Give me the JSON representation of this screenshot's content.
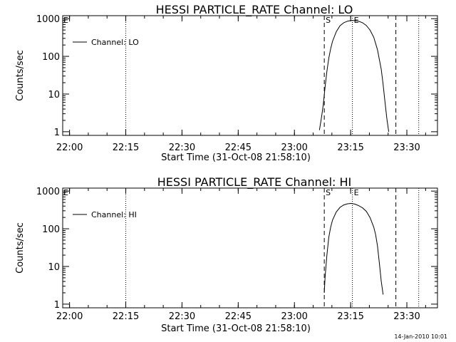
{
  "footer_timestamp": "14-Jan-2010 10:01",
  "chart_data": [
    {
      "type": "line",
      "title": "HESSI PARTICLE_RATE Channel: LO",
      "xlabel": "Start Time (31-Oct-08 21:58:10)",
      "ylabel": "Counts/sec",
      "x_tick_labels": [
        "22:00",
        "22:15",
        "22:30",
        "22:45",
        "23:00",
        "23:15",
        "23:30"
      ],
      "x_tick_minutes": [
        1.83,
        16.83,
        31.83,
        46.83,
        61.83,
        76.83,
        91.83
      ],
      "xlim_minutes": [
        0,
        100
      ],
      "ylim": [
        0.8,
        1200
      ],
      "y_scale": "log",
      "y_tick_labels": [
        "1",
        "10",
        "100",
        "1000"
      ],
      "y_ticks": [
        1,
        10,
        100,
        1000
      ],
      "legend": {
        "label": "Channel: LO",
        "position": "top-left"
      },
      "markers": [
        {
          "label": "S",
          "x_minutes": 69.8,
          "style": "dashed"
        },
        {
          "label": "E",
          "x_minutes": 77.3,
          "style": "dotted"
        }
      ],
      "vlines": [
        {
          "x_minutes": 16.83,
          "style": "dotted"
        },
        {
          "x_minutes": 69.8,
          "style": "dashed"
        },
        {
          "x_minutes": 77.3,
          "style": "dotted"
        },
        {
          "x_minutes": 88.9,
          "style": "dashed"
        },
        {
          "x_minutes": 95.0,
          "style": "dotted"
        }
      ],
      "series": [
        {
          "name": "Channel: LO",
          "x_minutes": [
            68.5,
            69.0,
            69.5,
            70.0,
            70.5,
            71.0,
            71.5,
            72.0,
            73.0,
            74.0,
            75.0,
            76.0,
            77.0,
            78.0,
            79.0,
            80.0,
            81.0,
            82.0,
            83.0,
            84.0,
            85.0,
            85.5,
            86.0,
            86.5,
            87.0
          ],
          "values": [
            1.1,
            2.2,
            5.0,
            15.0,
            40.0,
            90.0,
            160.0,
            250.0,
            450.0,
            650.0,
            780.0,
            860.0,
            900.0,
            890.0,
            850.0,
            780.0,
            660.0,
            500.0,
            320.0,
            150.0,
            45.0,
            18.0,
            6.0,
            2.2,
            1.0
          ]
        }
      ]
    },
    {
      "type": "line",
      "title": "HESSI PARTICLE_RATE Channel: HI",
      "xlabel": "Start Time (31-Oct-08 21:58:10)",
      "ylabel": "Counts/sec",
      "x_tick_labels": [
        "22:00",
        "22:15",
        "22:30",
        "22:45",
        "23:00",
        "23:15",
        "23:30"
      ],
      "x_tick_minutes": [
        1.83,
        16.83,
        31.83,
        46.83,
        61.83,
        76.83,
        91.83
      ],
      "xlim_minutes": [
        0,
        100
      ],
      "ylim": [
        0.8,
        1200
      ],
      "y_scale": "log",
      "y_tick_labels": [
        "1",
        "10",
        "100",
        "1000"
      ],
      "y_ticks": [
        1,
        10,
        100,
        1000
      ],
      "legend": {
        "label": "Channel: HI",
        "position": "top-left"
      },
      "markers": [
        {
          "label": "S",
          "x_minutes": 69.8,
          "style": "dashed"
        },
        {
          "label": "E",
          "x_minutes": 77.3,
          "style": "dotted"
        }
      ],
      "vlines": [
        {
          "x_minutes": 16.83,
          "style": "dotted"
        },
        {
          "x_minutes": 69.8,
          "style": "dashed"
        },
        {
          "x_minutes": 77.3,
          "style": "dotted"
        },
        {
          "x_minutes": 88.9,
          "style": "dashed"
        },
        {
          "x_minutes": 95.0,
          "style": "dotted"
        }
      ],
      "series": [
        {
          "name": "Channel: HI",
          "x_minutes": [
            69.8,
            70.0,
            70.5,
            71.0,
            71.5,
            72.0,
            73.0,
            74.0,
            75.0,
            76.0,
            77.0,
            78.0,
            79.0,
            80.0,
            81.0,
            82.0,
            83.0,
            83.5,
            84.0,
            84.5,
            85.0,
            85.5
          ],
          "values": [
            2.0,
            5.0,
            20.0,
            60.0,
            110.0,
            170.0,
            280.0,
            370.0,
            430.0,
            460.0,
            470.0,
            450.0,
            410.0,
            360.0,
            290.0,
            200.0,
            110.0,
            70.0,
            35.0,
            12.0,
            4.0,
            1.8
          ]
        }
      ]
    }
  ]
}
